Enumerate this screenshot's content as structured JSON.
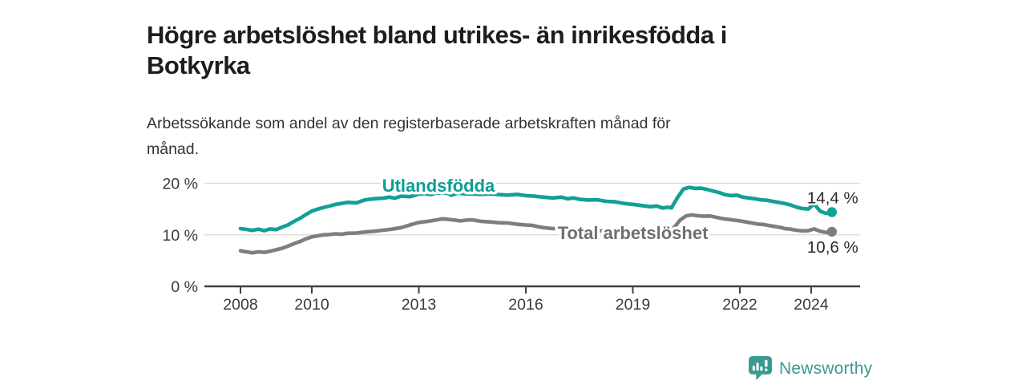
{
  "page": {
    "title": "Högre arbetslöshet bland utrikes- än inrikesfödda i\nBotkyrka",
    "subtitle": "Arbetssökande som andel av den registerbaserade arbetskraften månad för\nmånad."
  },
  "footer": {
    "brand": "Newsworthy"
  },
  "colors": {
    "accent_teal": "#12a096",
    "series_gray": "#7e7e7e",
    "gray_label": "#6f6f6f",
    "title_text": "#1d1d1d",
    "body_text": "#333333",
    "tick_text": "#3a3a3a",
    "value_label_text": "#2b2b2b",
    "grid": "#d9d9d9",
    "axis": "#404040",
    "background": "#ffffff"
  },
  "chart_data": {
    "type": "line",
    "unit": "%",
    "grid": "horizontal",
    "legend_position": "inline-labels",
    "xlim": [
      2007.9,
      2024.9
    ],
    "ylim": [
      0,
      21
    ],
    "x_ticks": {
      "years": [
        2008,
        2010,
        2013,
        2016,
        2019,
        2022,
        2024
      ],
      "labels": [
        "2008",
        "2010",
        "2013",
        "2016",
        "2019",
        "2022",
        "2024"
      ]
    },
    "y_ticks": {
      "values": [
        0,
        10,
        20
      ],
      "labels": [
        "0 %",
        "10 %",
        "20 %"
      ]
    },
    "series": [
      {
        "name": "Utlandsfödda",
        "color": "#12a096",
        "label_color": "#0f9d94",
        "label_anchor": {
          "x": 2013.55,
          "y": 19.45
        },
        "end_value_label": "14,4 %",
        "end_value": 14.4,
        "end_label_position": "above",
        "points": [
          [
            2008.0,
            11.2
          ],
          [
            2008.17,
            11.05
          ],
          [
            2008.33,
            10.85
          ],
          [
            2008.5,
            11.1
          ],
          [
            2008.67,
            10.8
          ],
          [
            2008.83,
            11.15
          ],
          [
            2009.0,
            11.0
          ],
          [
            2009.17,
            11.5
          ],
          [
            2009.33,
            11.9
          ],
          [
            2009.5,
            12.6
          ],
          [
            2009.67,
            13.2
          ],
          [
            2009.83,
            13.9
          ],
          [
            2010.0,
            14.6
          ],
          [
            2010.17,
            15.0
          ],
          [
            2010.33,
            15.3
          ],
          [
            2010.5,
            15.6
          ],
          [
            2010.67,
            15.9
          ],
          [
            2010.83,
            16.1
          ],
          [
            2011.0,
            16.3
          ],
          [
            2011.25,
            16.2
          ],
          [
            2011.5,
            16.8
          ],
          [
            2011.75,
            17.0
          ],
          [
            2012.0,
            17.1
          ],
          [
            2012.17,
            17.3
          ],
          [
            2012.33,
            17.1
          ],
          [
            2012.5,
            17.5
          ],
          [
            2012.75,
            17.4
          ],
          [
            2013.0,
            17.9
          ],
          [
            2013.17,
            18.0
          ],
          [
            2013.33,
            17.8
          ],
          [
            2013.5,
            18.1
          ],
          [
            2013.75,
            18.15
          ],
          [
            2013.92,
            17.7
          ],
          [
            2014.08,
            18.1
          ],
          [
            2014.25,
            18.0
          ],
          [
            2014.5,
            17.9
          ],
          [
            2014.75,
            17.85
          ],
          [
            2015.0,
            17.95
          ],
          [
            2015.25,
            17.8
          ],
          [
            2015.5,
            17.7
          ],
          [
            2015.75,
            17.85
          ],
          [
            2016.0,
            17.6
          ],
          [
            2016.25,
            17.5
          ],
          [
            2016.5,
            17.3
          ],
          [
            2016.75,
            17.15
          ],
          [
            2017.0,
            17.3
          ],
          [
            2017.17,
            17.0
          ],
          [
            2017.33,
            17.15
          ],
          [
            2017.5,
            16.9
          ],
          [
            2017.75,
            16.75
          ],
          [
            2018.0,
            16.8
          ],
          [
            2018.25,
            16.5
          ],
          [
            2018.5,
            16.4
          ],
          [
            2018.75,
            16.1
          ],
          [
            2019.0,
            15.9
          ],
          [
            2019.17,
            15.75
          ],
          [
            2019.33,
            15.6
          ],
          [
            2019.5,
            15.45
          ],
          [
            2019.67,
            15.6
          ],
          [
            2019.83,
            15.2
          ],
          [
            2020.0,
            15.35
          ],
          [
            2020.08,
            15.2
          ],
          [
            2020.25,
            17.2
          ],
          [
            2020.42,
            18.9
          ],
          [
            2020.58,
            19.2
          ],
          [
            2020.75,
            19.0
          ],
          [
            2020.92,
            19.05
          ],
          [
            2021.08,
            18.8
          ],
          [
            2021.25,
            18.5
          ],
          [
            2021.42,
            18.2
          ],
          [
            2021.58,
            17.8
          ],
          [
            2021.75,
            17.6
          ],
          [
            2021.92,
            17.7
          ],
          [
            2022.08,
            17.3
          ],
          [
            2022.25,
            17.15
          ],
          [
            2022.42,
            17.0
          ],
          [
            2022.58,
            16.8
          ],
          [
            2022.75,
            16.7
          ],
          [
            2022.92,
            16.5
          ],
          [
            2023.08,
            16.3
          ],
          [
            2023.25,
            16.1
          ],
          [
            2023.42,
            15.8
          ],
          [
            2023.58,
            15.4
          ],
          [
            2023.75,
            15.1
          ],
          [
            2023.92,
            15.0
          ],
          [
            2024.08,
            16.0
          ],
          [
            2024.25,
            14.6
          ],
          [
            2024.42,
            14.15
          ],
          [
            2024.58,
            14.4
          ]
        ]
      },
      {
        "name": "Total arbetslöshet",
        "color": "#7e7e7e",
        "label_color": "#6f6f6f",
        "label_anchor": {
          "x": 2019.0,
          "y": 10.3
        },
        "end_value_label": "10,6 %",
        "end_value": 10.6,
        "end_label_position": "below",
        "points": [
          [
            2008.0,
            6.9
          ],
          [
            2008.17,
            6.7
          ],
          [
            2008.33,
            6.5
          ],
          [
            2008.5,
            6.7
          ],
          [
            2008.67,
            6.6
          ],
          [
            2008.83,
            6.8
          ],
          [
            2009.0,
            7.1
          ],
          [
            2009.17,
            7.4
          ],
          [
            2009.33,
            7.8
          ],
          [
            2009.5,
            8.3
          ],
          [
            2009.67,
            8.7
          ],
          [
            2009.83,
            9.2
          ],
          [
            2010.0,
            9.6
          ],
          [
            2010.17,
            9.8
          ],
          [
            2010.33,
            10.0
          ],
          [
            2010.5,
            10.05
          ],
          [
            2010.67,
            10.2
          ],
          [
            2010.83,
            10.1
          ],
          [
            2011.0,
            10.3
          ],
          [
            2011.25,
            10.35
          ],
          [
            2011.5,
            10.55
          ],
          [
            2011.75,
            10.7
          ],
          [
            2012.0,
            10.9
          ],
          [
            2012.25,
            11.1
          ],
          [
            2012.5,
            11.4
          ],
          [
            2012.75,
            11.9
          ],
          [
            2013.0,
            12.4
          ],
          [
            2013.25,
            12.6
          ],
          [
            2013.5,
            12.9
          ],
          [
            2013.67,
            13.1
          ],
          [
            2013.83,
            13.0
          ],
          [
            2014.0,
            12.85
          ],
          [
            2014.17,
            12.7
          ],
          [
            2014.33,
            12.85
          ],
          [
            2014.5,
            12.9
          ],
          [
            2014.75,
            12.6
          ],
          [
            2015.0,
            12.5
          ],
          [
            2015.25,
            12.35
          ],
          [
            2015.5,
            12.3
          ],
          [
            2015.75,
            12.05
          ],
          [
            2016.0,
            11.9
          ],
          [
            2016.17,
            11.85
          ],
          [
            2016.33,
            11.6
          ],
          [
            2016.5,
            11.4
          ],
          [
            2016.75,
            11.2
          ],
          [
            2017.0,
            11.25
          ],
          [
            2017.25,
            11.05
          ],
          [
            2017.5,
            10.95
          ],
          [
            2017.75,
            10.85
          ],
          [
            2018.0,
            10.8
          ],
          [
            2018.25,
            10.7
          ],
          [
            2018.5,
            10.65
          ],
          [
            2018.75,
            10.55
          ],
          [
            2019.0,
            10.5
          ],
          [
            2019.25,
            10.45
          ],
          [
            2019.5,
            10.4
          ],
          [
            2019.75,
            10.45
          ],
          [
            2020.0,
            10.6
          ],
          [
            2020.17,
            11.5
          ],
          [
            2020.33,
            12.9
          ],
          [
            2020.5,
            13.7
          ],
          [
            2020.67,
            13.85
          ],
          [
            2020.83,
            13.7
          ],
          [
            2021.0,
            13.6
          ],
          [
            2021.17,
            13.65
          ],
          [
            2021.33,
            13.4
          ],
          [
            2021.5,
            13.15
          ],
          [
            2021.67,
            13.0
          ],
          [
            2021.83,
            12.85
          ],
          [
            2022.0,
            12.7
          ],
          [
            2022.17,
            12.5
          ],
          [
            2022.33,
            12.3
          ],
          [
            2022.5,
            12.1
          ],
          [
            2022.67,
            12.0
          ],
          [
            2022.83,
            11.8
          ],
          [
            2023.0,
            11.6
          ],
          [
            2023.17,
            11.4
          ],
          [
            2023.25,
            11.2
          ],
          [
            2023.42,
            11.1
          ],
          [
            2023.58,
            10.9
          ],
          [
            2023.75,
            10.75
          ],
          [
            2023.92,
            10.8
          ],
          [
            2024.08,
            11.15
          ],
          [
            2024.25,
            10.7
          ],
          [
            2024.42,
            10.45
          ],
          [
            2024.58,
            10.6
          ]
        ]
      }
    ]
  }
}
